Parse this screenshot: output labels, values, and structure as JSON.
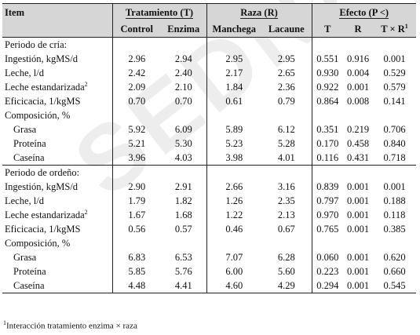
{
  "header": {
    "item": "Item",
    "tratamiento": "Tratamiento (T)",
    "raza": "Raza (R)",
    "efecto": "Efecto (P <)",
    "control": "Control",
    "enzima": "Enzima",
    "manchega": "Manchega",
    "lacaune": "Lacaune",
    "t": "T",
    "r": "R",
    "txr": "T × R",
    "txr_sup": "1"
  },
  "sections": [
    {
      "title": "Periodo de cría:",
      "rows": [
        {
          "label": "Ingestión,  kgMS/d",
          "sup": "",
          "indent": false,
          "values": [
            "2.96",
            "2.94",
            "2.95",
            "2.95",
            "0.551",
            "0.916",
            "0.001"
          ]
        },
        {
          "label": "Leche, l/d",
          "sup": "",
          "indent": false,
          "values": [
            "2.42",
            "2.40",
            "2.17",
            "2.65",
            "0.930",
            "0.004",
            "0.529"
          ]
        },
        {
          "label": "Leche estandarizada",
          "sup": "2",
          "indent": false,
          "values": [
            "2.09",
            "2.10",
            "1.84",
            "2.36",
            "0.922",
            "0.001",
            "0.579"
          ]
        },
        {
          "label": "Eficicacia, 1/kgMS",
          "sup": "",
          "indent": false,
          "values": [
            "0.70",
            "0.70",
            "0.61",
            "0.79",
            "0.864",
            "0.008",
            "0.141"
          ]
        },
        {
          "label": "Composición, %",
          "sup": "",
          "indent": false,
          "heading": true,
          "values": [
            "",
            "",
            "",
            "",
            "",
            "",
            ""
          ]
        },
        {
          "label": "Grasa",
          "sup": "",
          "indent": true,
          "values": [
            "5.92",
            "6.09",
            "5.89",
            "6.12",
            "0.351",
            "0.219",
            "0.706"
          ]
        },
        {
          "label": "Proteína",
          "sup": "",
          "indent": true,
          "values": [
            "5.21",
            "5.30",
            "5.23",
            "5.28",
            "0.170",
            "0.458",
            "0.840"
          ]
        },
        {
          "label": "Caseína",
          "sup": "",
          "indent": true,
          "values": [
            "3.96",
            "4.03",
            "3.98",
            "4.01",
            "0.116",
            "0.431",
            "0.718"
          ]
        }
      ]
    },
    {
      "title": "Periodo de ordeño:",
      "rows": [
        {
          "label": "Ingestión,  kgMS/d",
          "sup": "",
          "indent": false,
          "values": [
            "2.90",
            "2.91",
            "2.66",
            "3.16",
            "0.839",
            "0.001",
            "0.001"
          ]
        },
        {
          "label": "Leche, l/d",
          "sup": "",
          "indent": false,
          "values": [
            "1.79",
            "1.82",
            "1.26",
            "2.35",
            "0.797",
            "0.001",
            "0.188"
          ]
        },
        {
          "label": "Leche estandarizada",
          "sup": "2",
          "indent": false,
          "values": [
            "1.67",
            "1.68",
            "1.22",
            "2.13",
            "0.970",
            "0.001",
            "0.118"
          ]
        },
        {
          "label": "Eficicacia, 1/kgMS",
          "sup": "",
          "indent": false,
          "values": [
            "0.56",
            "0.57",
            "0.46",
            "0.67",
            "0.765",
            "0.001",
            "0.385"
          ]
        },
        {
          "label": "Composición, %",
          "sup": "",
          "indent": false,
          "heading": true,
          "values": [
            "",
            "",
            "",
            "",
            "",
            "",
            ""
          ]
        },
        {
          "label": "Grasa",
          "sup": "",
          "indent": true,
          "values": [
            "6.83",
            "6.53",
            "7.07",
            "6.28",
            "0.060",
            "0.001",
            "0.620"
          ]
        },
        {
          "label": "Proteína",
          "sup": "",
          "indent": true,
          "values": [
            "5.85",
            "5.76",
            "6.00",
            "5.60",
            "0.223",
            "0.001",
            "0.660"
          ]
        },
        {
          "label": "Caseína",
          "sup": "",
          "indent": true,
          "values": [
            "4.48",
            "4.41",
            "4.60",
            "4.29",
            "0.294",
            "0.001",
            "0.545"
          ]
        }
      ]
    }
  ],
  "footnote": {
    "sup": "1",
    "text": "Interacción tratamiento enzima × raza"
  },
  "watermark": "SEDNA"
}
